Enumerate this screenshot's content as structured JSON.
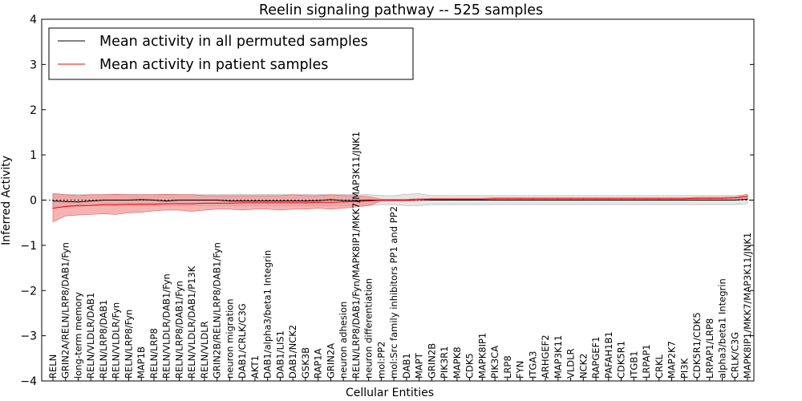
{
  "chart_data": {
    "type": "line",
    "title": "Reelin signaling pathway -- 525 samples",
    "xlabel": "Cellular Entities",
    "ylabel": "Inferred Activity",
    "ylim": [
      -4,
      4
    ],
    "yticks": [
      -4,
      -3,
      -2,
      -1,
      0,
      1,
      2,
      3,
      4
    ],
    "ytick_labels": [
      "−4",
      "−3",
      "−2",
      "−1",
      "0",
      "1",
      "2",
      "3",
      "4"
    ],
    "legend_position": "top-left",
    "categories": [
      "RELN",
      "GRIN2A/RELN/LRP8/DAB1/Fyn",
      "long-term memory",
      "RELN/VLDLR/DAB1",
      "RELN/LRP8/DAB1",
      "RELN/VLDLR/Fyn",
      "RELN/LRP8/Fyn",
      "MAP1B",
      "RELN/LRP8",
      "RELN/VLDLR/DAB1/Fyn",
      "RELN/LRP8/DAB1/Fyn",
      "RELN/VLDLR/DAB1/P13K",
      "RELN/VLDLR",
      "GRIN2B/RELN/LRP8/DAB1/Fyn",
      "neuron migration",
      "DAB1/CRLK/C3G",
      "AKT1",
      "DAB1/alpha3/beta1 Integrin",
      "DAB1/LIS1",
      "DAB1/NCK2",
      "GSK3B",
      "RAP1A",
      "GRIN2A",
      "neuron adhesion",
      "RELN/LRP8/DAB1/Fyn/MAPK8IP1/MKK7/MAP3K11/JNK1",
      "neuron differentiation",
      "mol:PP2",
      "mol:Src family inhibitors PP1 and PP2",
      "DAB1",
      "MAPT",
      "GRIN2B",
      "PIK3R1",
      "MAPK8",
      "CDK5",
      "MAPK8IP1",
      "PIK3CA",
      "LRP8",
      "FYN",
      "ITGA3",
      "ARHGEF2",
      "MAP3K11",
      "VLDLR",
      "NCK2",
      "RAPGEF1",
      "PAFAH1B1",
      "CDK5R1",
      "ITGB1",
      "LRPAP1",
      "CRKL",
      "MAP2K7",
      "PI3K",
      "CDK5R1/CDK5",
      "LRPAP1/LRP8",
      "alpha3/beta1 Integrin",
      "CRLK/C3G",
      "MAPK8IP1/MKK7/MAP3K11/JNK1"
    ],
    "series": [
      {
        "name": "Mean activity in all permuted samples",
        "color": "#000000",
        "values": [
          -0.02,
          -0.03,
          -0.04,
          -0.02,
          0.0,
          0.0,
          0.0,
          0.01,
          0.0,
          -0.02,
          0.0,
          0.0,
          0.0,
          0.0,
          -0.02,
          -0.02,
          -0.02,
          -0.02,
          -0.02,
          -0.02,
          -0.02,
          -0.01,
          0.01,
          -0.01,
          -0.01,
          0.0,
          0.0,
          0.0,
          0.0,
          0.01,
          0.0,
          0.0,
          0.0,
          0.0,
          0.0,
          0.0,
          0.0,
          0.0,
          0.0,
          0.0,
          0.0,
          0.0,
          0.0,
          0.0,
          0.0,
          0.0,
          0.0,
          0.0,
          0.0,
          0.0,
          0.0,
          0.0,
          0.0,
          0.0,
          0.0,
          0.02
        ],
        "band_lower": [
          -0.15,
          -0.15,
          -0.14,
          -0.12,
          -0.12,
          -0.12,
          -0.12,
          -0.12,
          -0.12,
          -0.12,
          -0.12,
          -0.12,
          -0.12,
          -0.12,
          -0.12,
          -0.12,
          -0.12,
          -0.12,
          -0.12,
          -0.12,
          -0.12,
          -0.12,
          -0.12,
          -0.12,
          -0.12,
          -0.12,
          -0.1,
          -0.1,
          -0.12,
          -0.12,
          -0.1,
          -0.1,
          -0.1,
          -0.1,
          -0.1,
          -0.1,
          -0.1,
          -0.1,
          -0.1,
          -0.1,
          -0.1,
          -0.1,
          -0.1,
          -0.1,
          -0.1,
          -0.1,
          -0.1,
          -0.1,
          -0.1,
          -0.1,
          -0.1,
          -0.1,
          -0.1,
          -0.1,
          -0.1,
          -0.08
        ],
        "band_upper": [
          0.12,
          0.12,
          0.12,
          0.12,
          0.12,
          0.12,
          0.12,
          0.12,
          0.12,
          0.12,
          0.12,
          0.12,
          0.12,
          0.12,
          0.12,
          0.12,
          0.12,
          0.12,
          0.12,
          0.12,
          0.12,
          0.12,
          0.12,
          0.12,
          0.12,
          0.12,
          0.1,
          0.1,
          0.13,
          0.14,
          0.1,
          0.1,
          0.1,
          0.1,
          0.1,
          0.1,
          0.1,
          0.1,
          0.1,
          0.1,
          0.1,
          0.1,
          0.1,
          0.1,
          0.1,
          0.1,
          0.1,
          0.1,
          0.1,
          0.1,
          0.1,
          0.1,
          0.1,
          0.1,
          0.1,
          0.12
        ]
      },
      {
        "name": "Mean activity in patient samples",
        "color": "#ff0000",
        "values": [
          -0.18,
          -0.14,
          -0.12,
          -0.12,
          -0.1,
          -0.1,
          -0.09,
          -0.09,
          -0.09,
          -0.08,
          -0.08,
          -0.08,
          -0.07,
          -0.07,
          -0.07,
          -0.06,
          -0.06,
          -0.06,
          -0.06,
          -0.06,
          -0.06,
          -0.05,
          -0.05,
          -0.04,
          -0.03,
          -0.02,
          0.0,
          0.0,
          0.0,
          0.01,
          0.02,
          0.02,
          0.02,
          0.02,
          0.02,
          0.03,
          0.03,
          0.03,
          0.03,
          0.03,
          0.03,
          0.03,
          0.03,
          0.03,
          0.03,
          0.03,
          0.03,
          0.03,
          0.03,
          0.03,
          0.03,
          0.04,
          0.04,
          0.04,
          0.05,
          0.08
        ],
        "band_lower": [
          -0.48,
          -0.35,
          -0.33,
          -0.32,
          -0.3,
          -0.32,
          -0.28,
          -0.27,
          -0.24,
          -0.22,
          -0.22,
          -0.25,
          -0.22,
          -0.2,
          -0.2,
          -0.22,
          -0.2,
          -0.2,
          -0.22,
          -0.2,
          -0.2,
          -0.18,
          -0.2,
          -0.18,
          -0.15,
          -0.12,
          -0.02,
          -0.02,
          -0.02,
          -0.01,
          0.0,
          0.0,
          0.0,
          0.0,
          0.0,
          0.0,
          0.0,
          0.0,
          0.0,
          0.0,
          0.0,
          0.0,
          0.0,
          0.0,
          0.0,
          0.0,
          0.0,
          0.0,
          0.0,
          0.0,
          0.0,
          0.0,
          0.0,
          0.0,
          0.0,
          0.02
        ],
        "band_upper": [
          0.15,
          0.12,
          0.1,
          0.12,
          0.12,
          0.13,
          0.12,
          0.12,
          0.12,
          0.13,
          0.12,
          0.12,
          0.1,
          0.1,
          0.1,
          0.1,
          0.1,
          0.1,
          0.1,
          0.12,
          0.1,
          0.1,
          0.12,
          0.1,
          0.1,
          0.08,
          0.02,
          0.02,
          0.02,
          0.03,
          0.04,
          0.04,
          0.04,
          0.04,
          0.04,
          0.05,
          0.05,
          0.05,
          0.05,
          0.05,
          0.05,
          0.05,
          0.05,
          0.05,
          0.05,
          0.05,
          0.05,
          0.05,
          0.05,
          0.05,
          0.05,
          0.06,
          0.06,
          0.06,
          0.07,
          0.13
        ]
      }
    ],
    "colors": {
      "permuted_band": "#d9d9d9",
      "patient_band": "#f08080"
    }
  }
}
